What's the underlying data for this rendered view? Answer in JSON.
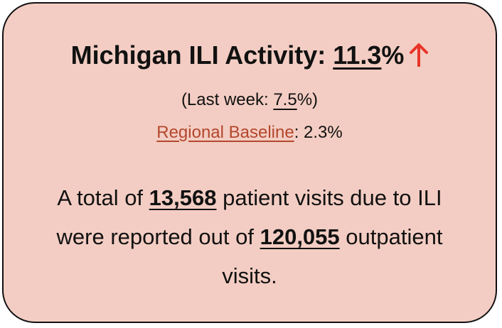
{
  "card": {
    "headline": {
      "label": "Michigan ILI Activity: ",
      "value": "11.3",
      "unit": "%"
    },
    "last_week": {
      "prefix": "(Last week: ",
      "value": "7.5",
      "suffix": "%)"
    },
    "baseline": {
      "label": "Regional Baseline",
      "value": ": 2.3%"
    },
    "summary": {
      "part1": "A total of ",
      "ili_visits": "13,568",
      "part2": " patient visits due to ILI were reported out of ",
      "total_visits": "120,055",
      "part3": " outpatient visits."
    }
  }
}
